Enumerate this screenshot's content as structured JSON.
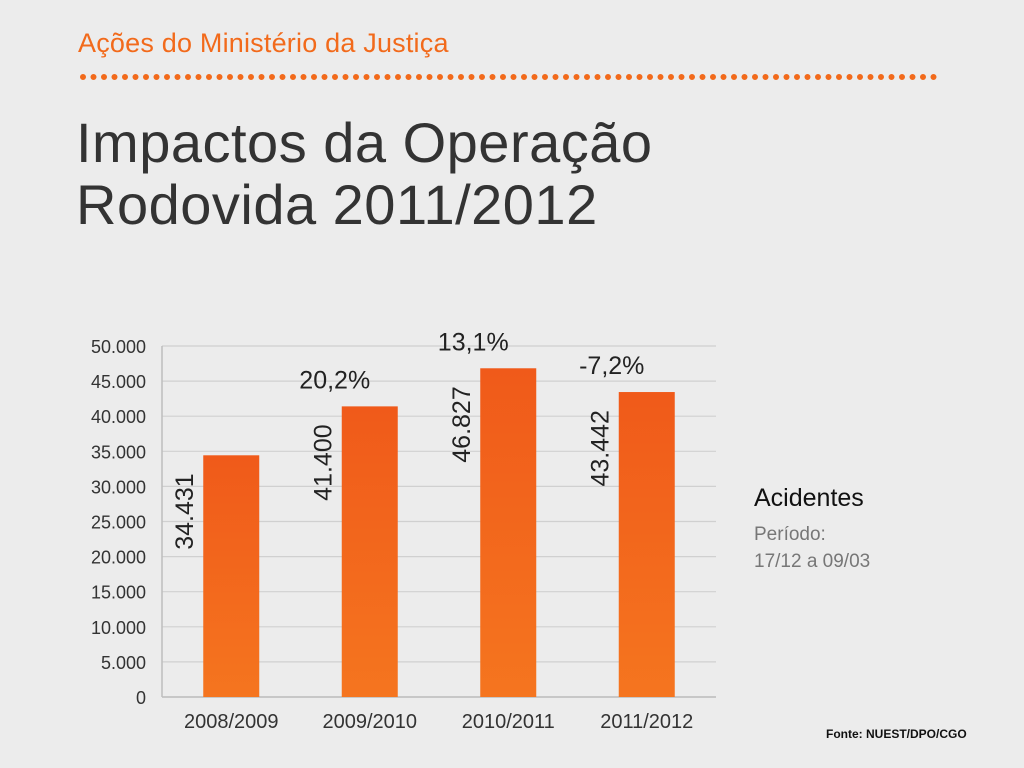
{
  "header": {
    "title": "Ações do Ministério da Justiça"
  },
  "slide": {
    "title_line1": "Impactos da Operação",
    "title_line2": "Rodovida 2011/2012"
  },
  "side_panel": {
    "title": "Acidentes",
    "period_label": "Período:",
    "period_value": "17/12 a 09/03"
  },
  "source": "Fonte: NUEST/DPO/CGO",
  "colors": {
    "accent": "#f26a1b",
    "bar": "#f05a1a",
    "bar_light": "#f5751f",
    "text": "#333333"
  },
  "chart_data": {
    "type": "bar",
    "categories": [
      "2008/2009",
      "2009/2010",
      "2010/2011",
      "2011/2012"
    ],
    "values": [
      34431,
      41400,
      46827,
      43442
    ],
    "value_labels": [
      "34.431",
      "41.400",
      "46.827",
      "43.442"
    ],
    "change_labels": [
      "",
      "20,2%",
      "13,1%",
      "-7,2%"
    ],
    "y_ticks": [
      0,
      5000,
      10000,
      15000,
      20000,
      25000,
      30000,
      35000,
      40000,
      45000,
      50000
    ],
    "y_tick_labels": [
      "0",
      "5.000",
      "10.000",
      "15.000",
      "20.000",
      "25.000",
      "30.000",
      "35.000",
      "40.000",
      "45.000",
      "50.000"
    ],
    "ylim": [
      0,
      50000
    ],
    "grid": true
  }
}
